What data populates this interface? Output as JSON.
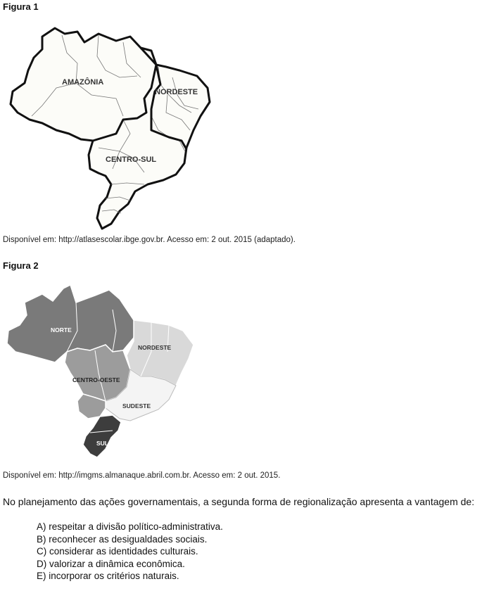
{
  "figure1": {
    "title": "Figura 1",
    "regions": [
      "AMAZÔNIA",
      "NORDESTE",
      "CENTRO-SUL"
    ],
    "source": "Disponível em: http://atlasescolar.ibge.gov.br. Acesso em: 2 out. 2015 (adaptado)."
  },
  "figure2": {
    "title": "Figura 2",
    "regions": [
      "NORTE",
      "NORDESTE",
      "CENTRO-OESTE",
      "SUDESTE",
      "SUL"
    ],
    "region_colors": {
      "norte": "#7a7a7a",
      "nordeste": "#d9d9d9",
      "centro_oeste": "#9c9c9c",
      "sudeste": "#f4f4f4",
      "sul": "#3d3d3d"
    },
    "source": "Disponível em: http://imgms.almanaque.abril.com.br. Acesso em: 2 out. 2015."
  },
  "question": "No planejamento das ações governamentais, a segunda forma de regionalização apresenta a vantagem de:",
  "options": [
    "A) respeitar a divisão político-administrativa.",
    "B) reconhecer as desigualdades sociais.",
    "C) considerar as identidades culturais.",
    "D) valorizar a dinâmica econômica.",
    "E) incorporar os critérios naturais."
  ]
}
